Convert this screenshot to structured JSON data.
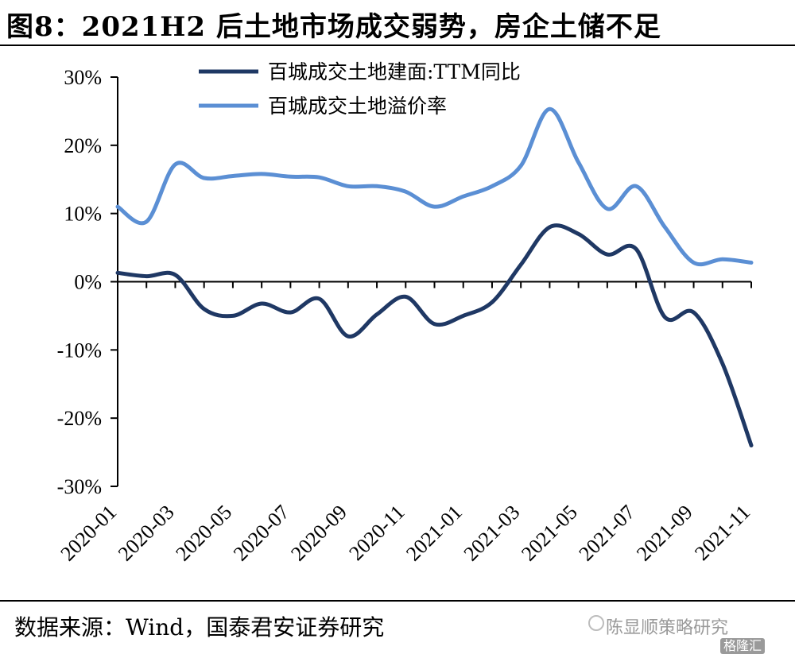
{
  "header": {
    "title": "图8：2021H2 后土地市场成交弱势，房企土储不足"
  },
  "footer": {
    "source": "数据来源：Wind，国泰君安证券研究",
    "watermark": "陈显顺策略研究",
    "badge": "格隆汇"
  },
  "chart_data": {
    "type": "line",
    "categories": [
      "2020-01",
      "2020-02",
      "2020-03",
      "2020-04",
      "2020-05",
      "2020-06",
      "2020-07",
      "2020-08",
      "2020-09",
      "2020-10",
      "2020-11",
      "2020-12",
      "2021-01",
      "2021-02",
      "2021-03",
      "2021-04",
      "2021-05",
      "2021-06",
      "2021-07",
      "2021-08",
      "2021-09",
      "2021-10",
      "2021-11"
    ],
    "tick_labels": [
      "2020-01",
      "2020-03",
      "2020-05",
      "2020-07",
      "2020-09",
      "2020-11",
      "2021-01",
      "2021-03",
      "2021-05",
      "2021-07",
      "2021-09",
      "2021-11"
    ],
    "y_tick_labels": [
      "30%",
      "20%",
      "10%",
      "0%",
      "-10%",
      "-20%",
      "-30%"
    ],
    "ylim": [
      -30,
      30
    ],
    "y_ticks": [
      30,
      20,
      10,
      0,
      -10,
      -20,
      -30
    ],
    "grid": false,
    "legend_position": "top",
    "series": [
      {
        "name": "百城成交土地建面:TTM同比",
        "color": "#1f3864",
        "values": [
          1.3,
          0.8,
          1.0,
          -4.0,
          -5.0,
          -3.2,
          -4.5,
          -2.5,
          -8.0,
          -4.8,
          -2.2,
          -6.2,
          -5.0,
          -3.0,
          2.5,
          8.0,
          7.0,
          4.0,
          4.8,
          -5.2,
          -4.5,
          -12.0,
          -24.0
        ]
      },
      {
        "name": "百城成交土地溢价率",
        "color": "#5b8fd4",
        "values": [
          11.0,
          8.8,
          17.2,
          15.2,
          15.5,
          15.8,
          15.4,
          15.3,
          14.0,
          14.0,
          13.2,
          11.0,
          12.5,
          14.0,
          17.0,
          25.3,
          17.5,
          10.7,
          14.0,
          8.0,
          2.8,
          3.3,
          2.8
        ]
      }
    ]
  }
}
